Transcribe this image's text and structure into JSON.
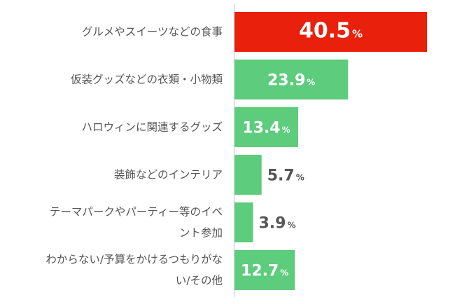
{
  "chart_data": {
    "type": "bar",
    "orientation": "horizontal",
    "categories": [
      [
        "グルメやスイーツなどの食事"
      ],
      [
        "仮装グッズなどの衣類・小物類"
      ],
      [
        "ハロウィンに関連するグッズ"
      ],
      [
        "装飾などのインテリア"
      ],
      [
        "テーマパークやパーティー等のイベ",
        "ント参加"
      ],
      [
        "わからない/予算をかけるつもりがな",
        "い/その他"
      ]
    ],
    "values": [
      40.5,
      23.9,
      13.4,
      5.7,
      3.9,
      12.7
    ],
    "value_labels": [
      "40.5",
      "23.9",
      "13.4",
      "5.7",
      "3.9",
      "12.7"
    ],
    "unit": "%",
    "xlim": [
      0,
      50
    ],
    "grid": false,
    "legend": "none",
    "colors": {
      "highlight": "#e8200c",
      "bar": "#5dcc7c",
      "label_inside": "#ffffff",
      "label_outside": "#555555",
      "axis": "#bfbfbf"
    },
    "highlight_index": 0
  }
}
